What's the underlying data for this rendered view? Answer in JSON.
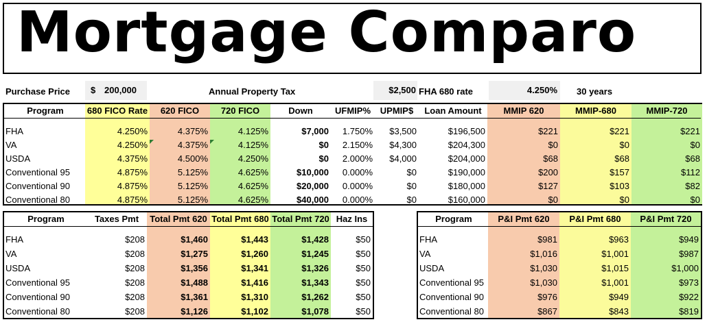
{
  "title": "Mortgage Comparo",
  "summary": {
    "purchase_price_label": "Purchase Price",
    "purchase_price_currency": "$",
    "purchase_price_value": "200,000",
    "tax_label": "Annual Property Tax",
    "tax_value": "$2,500",
    "rate_label": "FHA 680 rate",
    "rate_value": "4.250%",
    "term": "30 years"
  },
  "rates_table": {
    "headers": [
      "Program",
      "680 FICO Rate",
      "620 FICO",
      "720 FICO",
      "Down",
      "UFMIP%",
      "UPMIP$",
      "Loan Amount",
      "MMIP 620",
      "MMIP-680",
      "MMIP-720"
    ],
    "rows": [
      [
        "FHA",
        "4.250%",
        "4.375%",
        "4.125%",
        "$7,000",
        "1.750%",
        "$3,500",
        "$196,500",
        "$221",
        "$221",
        "$221"
      ],
      [
        "VA",
        "4.250%",
        "4.375%",
        "4.125%",
        "$0",
        "2.150%",
        "$4,300",
        "$204,300",
        "$0",
        "$0",
        "$0"
      ],
      [
        "USDA",
        "4.375%",
        "4.500%",
        "4.250%",
        "$0",
        "2.000%",
        "$4,000",
        "$204,000",
        "$68",
        "$68",
        "$68"
      ],
      [
        "Conventional 95",
        "4.875%",
        "5.125%",
        "4.625%",
        "$10,000",
        "0.000%",
        "$0",
        "$190,000",
        "$200",
        "$157",
        "$112"
      ],
      [
        "Conventional 90",
        "4.875%",
        "5.125%",
        "4.625%",
        "$20,000",
        "0.000%",
        "$0",
        "$180,000",
        "$127",
        "$103",
        "$82"
      ],
      [
        "Conventional 80",
        "4.875%",
        "5.125%",
        "4.625%",
        "$40,000",
        "0.000%",
        "$0",
        "$160,000",
        "$0",
        "$0",
        "$0"
      ]
    ]
  },
  "payments_table": {
    "headers": [
      "Program",
      "Taxes Pmt",
      "Total Pmt 620",
      "Total Pmt 680",
      "Total Pmt 720",
      "Haz Ins"
    ],
    "rows": [
      [
        "FHA",
        "$208",
        "$1,460",
        "$1,443",
        "$1,428",
        "$50"
      ],
      [
        "VA",
        "$208",
        "$1,275",
        "$1,260",
        "$1,245",
        "$50"
      ],
      [
        "USDA",
        "$208",
        "$1,356",
        "$1,341",
        "$1,326",
        "$50"
      ],
      [
        "Conventional 95",
        "$208",
        "$1,488",
        "$1,416",
        "$1,343",
        "$50"
      ],
      [
        "Conventional 90",
        "$208",
        "$1,361",
        "$1,310",
        "$1,262",
        "$50"
      ],
      [
        "Conventional 80",
        "$208",
        "$1,126",
        "$1,102",
        "$1,078",
        "$50"
      ]
    ]
  },
  "pi_table": {
    "headers": [
      "Program",
      "P&I Pmt 620",
      "P&I Pmt 680",
      "P&I Pmt 720"
    ],
    "rows": [
      [
        "FHA",
        "$981",
        "$963",
        "$949"
      ],
      [
        "VA",
        "$1,016",
        "$1,001",
        "$987"
      ],
      [
        "USDA",
        "$1,030",
        "$1,015",
        "$1,000"
      ],
      [
        "Conventional 95",
        "$1,030",
        "$1,001",
        "$973"
      ],
      [
        "Conventional 90",
        "$976",
        "$949",
        "$922"
      ],
      [
        "Conventional 80",
        "$867",
        "$843",
        "$819"
      ]
    ]
  },
  "colors": {
    "orange": "#f8cbad",
    "yellow": "#ffff99",
    "green": "#c6efce"
  }
}
